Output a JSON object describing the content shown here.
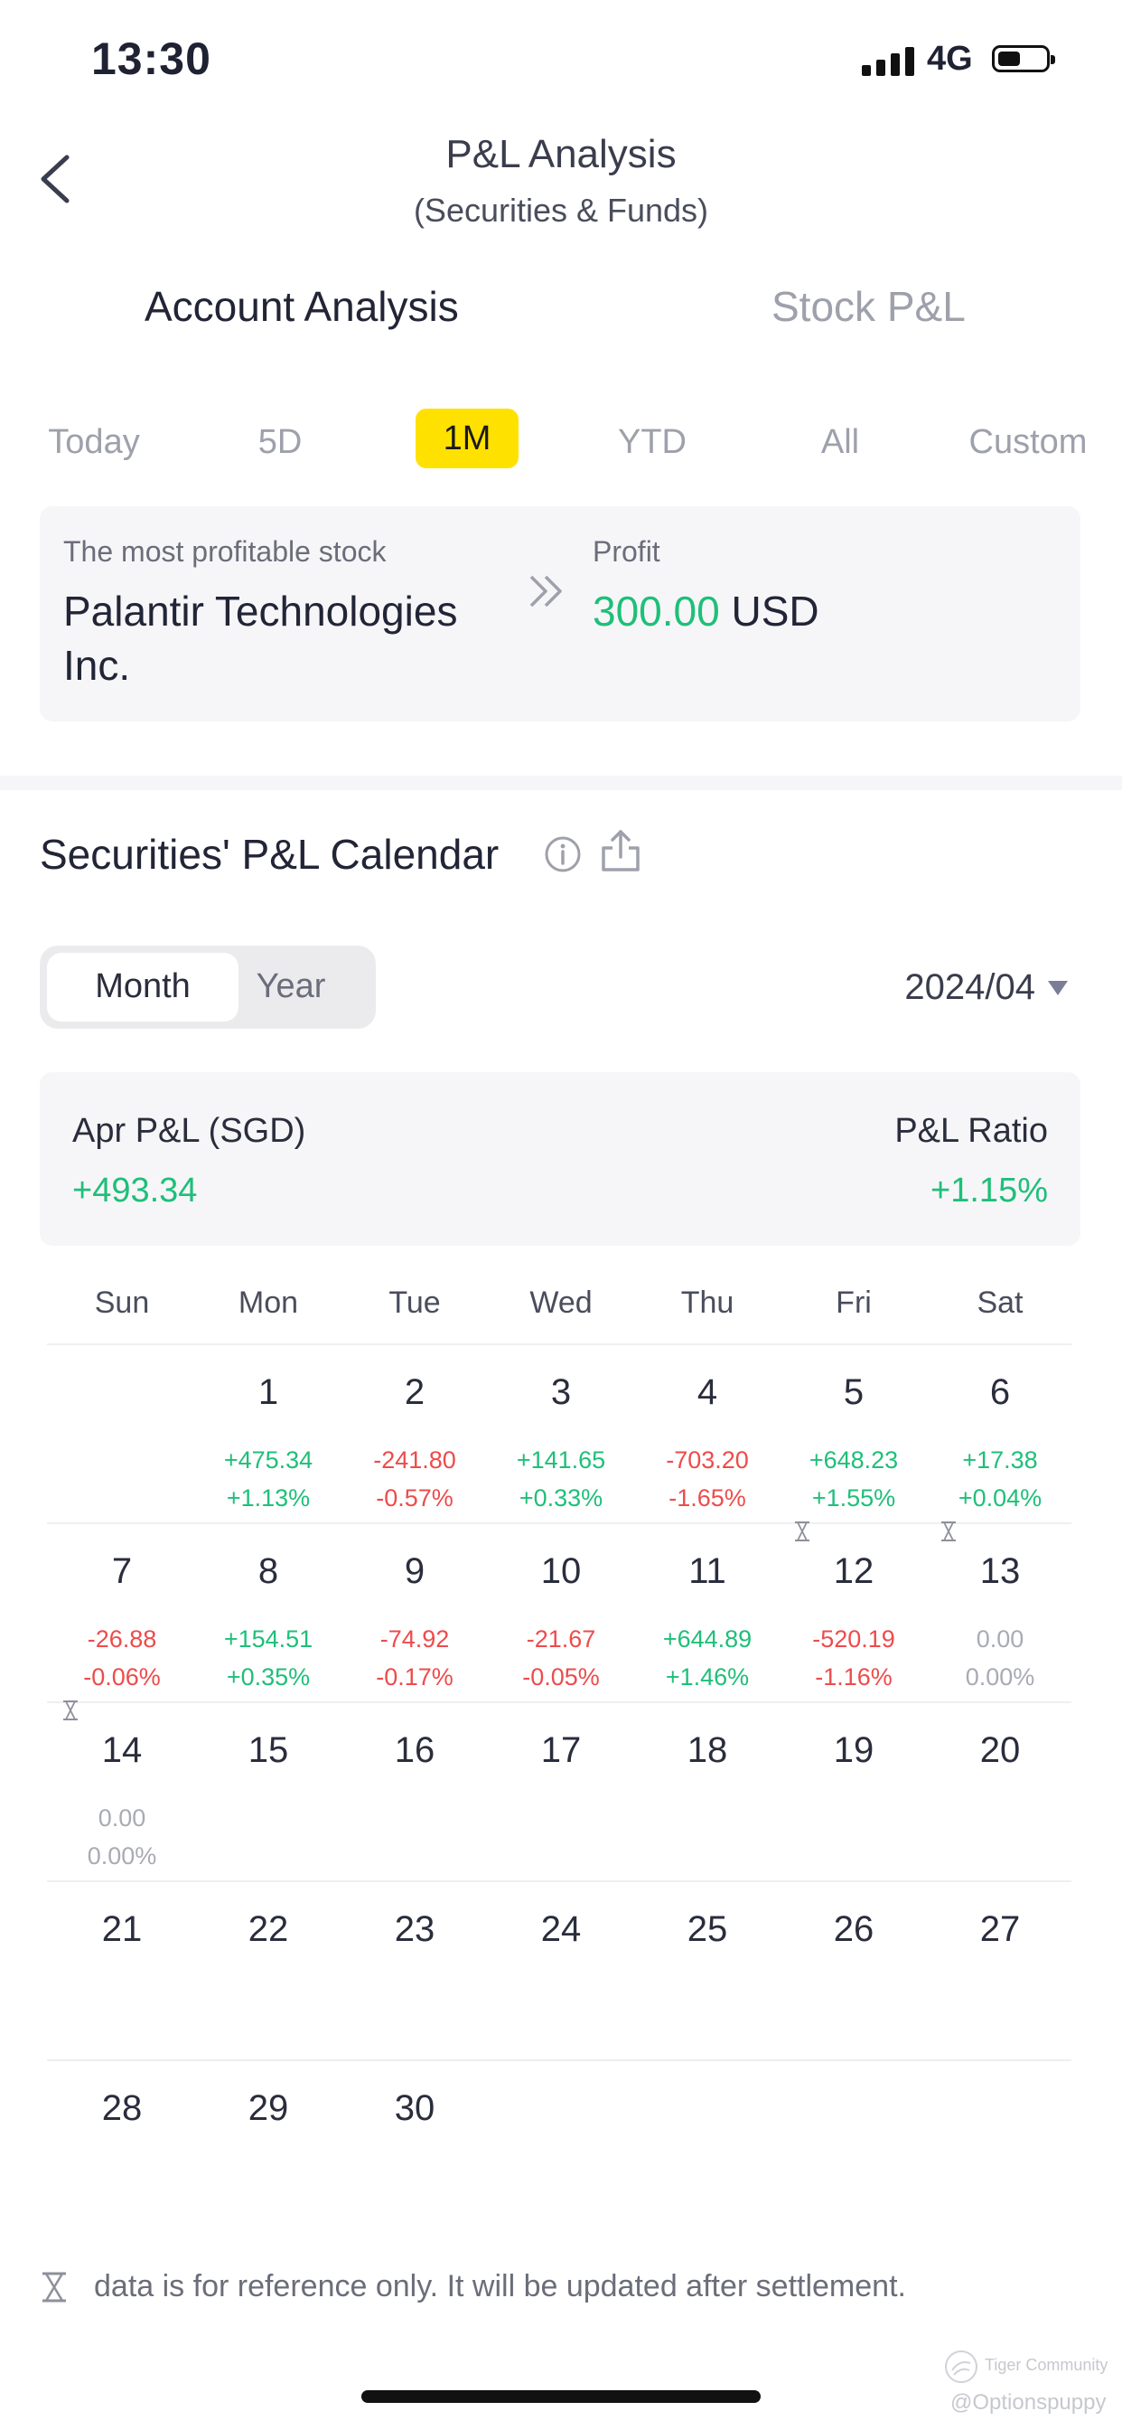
{
  "status_bar": {
    "time": "13:30",
    "network": "4G"
  },
  "header": {
    "title": "P&L Analysis",
    "subtitle": "(Securities & Funds)"
  },
  "tabs": [
    {
      "label": "Account Analysis",
      "active": true
    },
    {
      "label": "Stock P&L",
      "active": false
    }
  ],
  "periods": [
    {
      "label": "Today",
      "active": false
    },
    {
      "label": "5D",
      "active": false
    },
    {
      "label": "1M",
      "active": true
    },
    {
      "label": "YTD",
      "active": false
    },
    {
      "label": "All",
      "active": false
    },
    {
      "label": "Custom",
      "active": false
    }
  ],
  "profitable": {
    "label": "The most profitable stock",
    "name_line1": "Palantir Technologies",
    "name_line2": "Inc.",
    "profit_label": "Profit",
    "profit_value": "300.00",
    "currency": "USD"
  },
  "calendar": {
    "title": "Securities' P&L Calendar",
    "toggle": {
      "month": "Month",
      "year": "Year",
      "active": "Month"
    },
    "selected_month": "2024/04",
    "summary": {
      "label": "Apr P&L (SGD)",
      "value": "+493.34",
      "ratio_label": "P&L Ratio",
      "ratio_value": "+1.15%"
    },
    "weekdays": [
      "Sun",
      "Mon",
      "Tue",
      "Wed",
      "Thu",
      "Fri",
      "Sat"
    ],
    "weeks": [
      [
        null,
        {
          "day": "1",
          "pl": "+475.34",
          "pct": "+1.13%",
          "tone": "up"
        },
        {
          "day": "2",
          "pl": "-241.80",
          "pct": "-0.57%",
          "tone": "down"
        },
        {
          "day": "3",
          "pl": "+141.65",
          "pct": "+0.33%",
          "tone": "up"
        },
        {
          "day": "4",
          "pl": "-703.20",
          "pct": "-1.65%",
          "tone": "down"
        },
        {
          "day": "5",
          "pl": "+648.23",
          "pct": "+1.55%",
          "tone": "up"
        },
        {
          "day": "6",
          "pl": "+17.38",
          "pct": "+0.04%",
          "tone": "up"
        }
      ],
      [
        {
          "day": "7",
          "pl": "-26.88",
          "pct": "-0.06%",
          "tone": "down"
        },
        {
          "day": "8",
          "pl": "+154.51",
          "pct": "+0.35%",
          "tone": "up"
        },
        {
          "day": "9",
          "pl": "-74.92",
          "pct": "-0.17%",
          "tone": "down"
        },
        {
          "day": "10",
          "pl": "-21.67",
          "pct": "-0.05%",
          "tone": "down"
        },
        {
          "day": "11",
          "pl": "+644.89",
          "pct": "+1.46%",
          "tone": "up"
        },
        {
          "day": "12",
          "pl": "-520.19",
          "pct": "-1.16%",
          "tone": "down",
          "pending": true
        },
        {
          "day": "13",
          "pl": "0.00",
          "pct": "0.00%",
          "tone": "flat",
          "pending": true
        }
      ],
      [
        {
          "day": "14",
          "pl": "0.00",
          "pct": "0.00%",
          "tone": "flat",
          "pending": true
        },
        {
          "day": "15"
        },
        {
          "day": "16"
        },
        {
          "day": "17"
        },
        {
          "day": "18"
        },
        {
          "day": "19"
        },
        {
          "day": "20"
        }
      ],
      [
        {
          "day": "21"
        },
        {
          "day": "22"
        },
        {
          "day": "23"
        },
        {
          "day": "24"
        },
        {
          "day": "25"
        },
        {
          "day": "26"
        },
        {
          "day": "27"
        }
      ],
      [
        {
          "day": "28"
        },
        {
          "day": "29"
        },
        {
          "day": "30"
        },
        null,
        null,
        null,
        null
      ]
    ],
    "footnote": "data is for reference only. It will be updated after settlement."
  },
  "watermark": {
    "brand": "Tiger Community",
    "handle": "@Optionspuppy"
  },
  "colors": {
    "up": "#1fbf79",
    "down": "#ee4b4b",
    "flat": "#a9abb3",
    "accent": "#ffe100"
  },
  "icons": [
    "back-chevron-icon",
    "info-icon",
    "share-icon",
    "double-chevron-right-icon",
    "hourglass-icon",
    "dropdown-triangle-icon"
  ]
}
